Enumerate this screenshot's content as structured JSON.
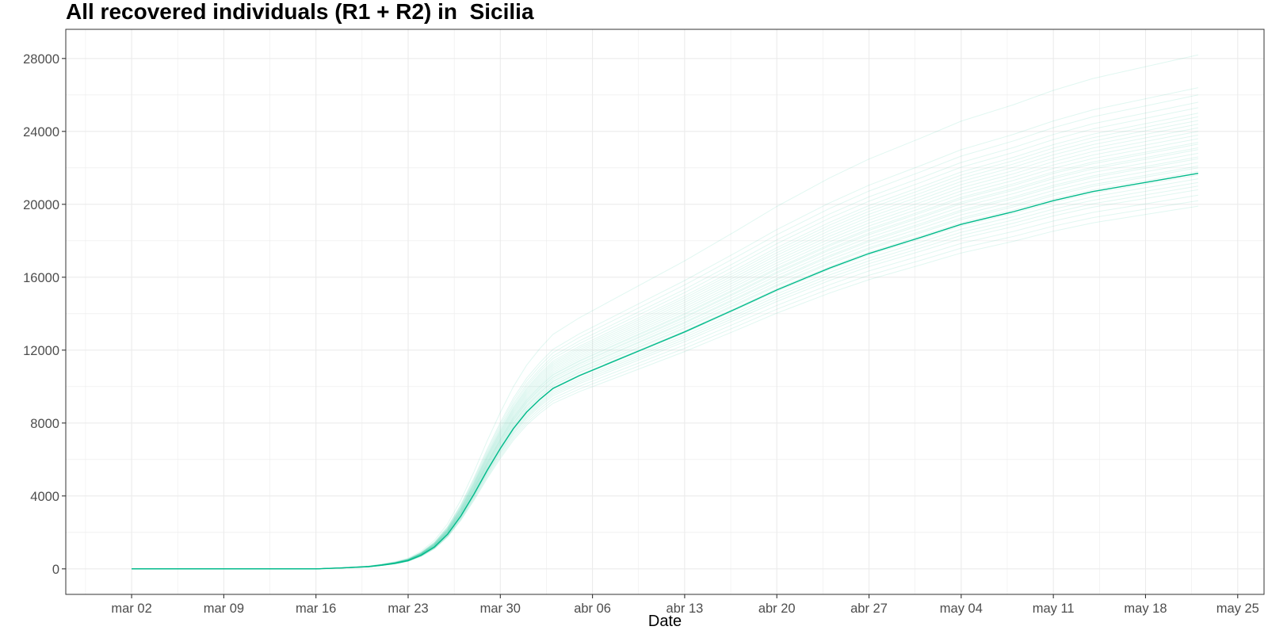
{
  "chart_data": {
    "type": "line",
    "title": "All recovered individuals (R1 + R2) in  Sicilia",
    "xlabel": "Date",
    "ylabel": "",
    "x_axis": {
      "type": "date",
      "range": [
        "2020-02-26",
        "2020-05-27"
      ],
      "ticks": [
        {
          "date": "2020-03-02",
          "label": "mar 02"
        },
        {
          "date": "2020-03-09",
          "label": "mar 09"
        },
        {
          "date": "2020-03-16",
          "label": "mar 16"
        },
        {
          "date": "2020-03-23",
          "label": "mar 23"
        },
        {
          "date": "2020-03-30",
          "label": "mar 30"
        },
        {
          "date": "2020-04-06",
          "label": "abr 06"
        },
        {
          "date": "2020-04-13",
          "label": "abr 13"
        },
        {
          "date": "2020-04-20",
          "label": "abr 20"
        },
        {
          "date": "2020-04-27",
          "label": "abr 27"
        },
        {
          "date": "2020-05-04",
          "label": "may 04"
        },
        {
          "date": "2020-05-11",
          "label": "may 11"
        },
        {
          "date": "2020-05-18",
          "label": "may 18"
        },
        {
          "date": "2020-05-25",
          "label": "may 25"
        }
      ]
    },
    "y_axis": {
      "range": [
        -1400,
        29600
      ],
      "ticks": [
        0,
        4000,
        8000,
        12000,
        16000,
        20000,
        24000,
        28000
      ]
    },
    "grid": true,
    "colors": {
      "line": "#00BA8A",
      "grid": "#ebebeb",
      "axis": "#333333"
    },
    "main_series": {
      "x": [
        "2020-03-02",
        "2020-03-09",
        "2020-03-16",
        "2020-03-18",
        "2020-03-20",
        "2020-03-21",
        "2020-03-22",
        "2020-03-23",
        "2020-03-24",
        "2020-03-25",
        "2020-03-26",
        "2020-03-27",
        "2020-03-28",
        "2020-03-29",
        "2020-03-30",
        "2020-03-31",
        "2020-04-01",
        "2020-04-02",
        "2020-04-03",
        "2020-04-05",
        "2020-04-07",
        "2020-04-10",
        "2020-04-13",
        "2020-04-17",
        "2020-04-20",
        "2020-04-24",
        "2020-04-27",
        "2020-05-01",
        "2020-05-04",
        "2020-05-08",
        "2020-05-11",
        "2020-05-14",
        "2020-05-18",
        "2020-05-22"
      ],
      "y": [
        0,
        0,
        0,
        50,
        120,
        200,
        300,
        450,
        750,
        1200,
        1900,
        2900,
        4100,
        5400,
        6600,
        7700,
        8600,
        9300,
        9900,
        10600,
        11200,
        12100,
        13000,
        14300,
        15300,
        16500,
        17300,
        18200,
        18900,
        19600,
        20200,
        20700,
        21200,
        21700
      ]
    },
    "ensemble_final_values": [
      19900,
      20200,
      20500,
      20800,
      21000,
      21200,
      21400,
      21600,
      21800,
      22000,
      22100,
      22300,
      22500,
      22600,
      22800,
      23000,
      23100,
      23300,
      23400,
      23600,
      23800,
      24000,
      24200,
      24400,
      24600,
      24800,
      25000,
      25300,
      25600,
      26000,
      26400,
      28200
    ]
  }
}
